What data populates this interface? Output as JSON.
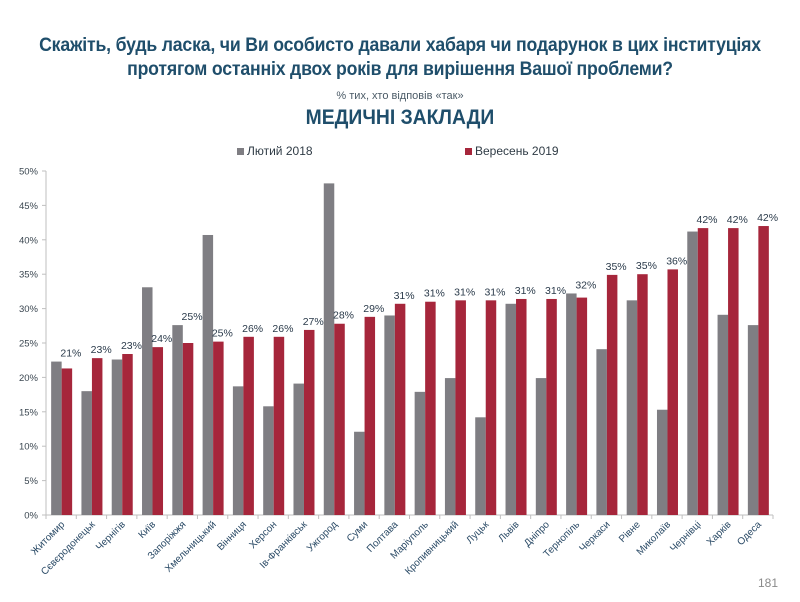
{
  "page": {
    "title_line1": "Скажіть, будь ласка, чи Ви особисто давали хабаря чи подарунок в цих інституціях",
    "title_line2": "протягом останніх двох років для вирішення Вашої проблеми?",
    "subtitle": "% тих, хто відповів «так»",
    "section_title": "МЕДИЧНІ ЗАКЛАДИ",
    "page_number": "181"
  },
  "chart_data": {
    "type": "bar",
    "title": "МЕДИЧНІ ЗАКЛАДИ",
    "subtitle": "% тих, хто відповів «так»",
    "xlabel": "",
    "ylabel": "",
    "ylim": [
      0,
      50
    ],
    "yticks": [
      0,
      5,
      10,
      15,
      20,
      25,
      30,
      35,
      40,
      45,
      50
    ],
    "ytick_labels": [
      "0%",
      "5%",
      "10%",
      "15%",
      "20%",
      "25%",
      "30%",
      "35%",
      "40%",
      "45%",
      "50%"
    ],
    "grid": false,
    "legend_position": "top-center",
    "categories": [
      "Житомир",
      "Сєвєродонецьк",
      "Чернігів",
      "Київ",
      "Запоріжжя",
      "Хмельницький",
      "Вінниця",
      "Херсон",
      "Ів-Франківськ",
      "Ужгород",
      "Суми",
      "Полтава",
      "Маріуполь",
      "Кропивницький",
      "Луцьк",
      "Львів",
      "Дніпро",
      "Тернопіль",
      "Черкаси",
      "Рівне",
      "Миколаїв",
      "Чернівці",
      "Харків",
      "Одеса"
    ],
    "series": [
      {
        "name": "Лютий 2018",
        "color": "#7f7e83",
        "values": [
          22.3,
          18.0,
          22.6,
          33.1,
          27.6,
          40.7,
          18.7,
          15.8,
          19.1,
          48.2,
          12.1,
          29.0,
          17.9,
          19.9,
          14.2,
          30.7,
          19.9,
          32.2,
          24.1,
          31.2,
          15.3,
          41.2,
          29.1,
          27.6
        ],
        "data_labels": null
      },
      {
        "name": "Вересень 2019",
        "color": "#a6263b",
        "values": [
          21.3,
          22.8,
          23.4,
          24.4,
          25.0,
          25.2,
          25.9,
          25.9,
          26.9,
          27.8,
          28.8,
          30.7,
          31.0,
          31.2,
          31.2,
          31.4,
          31.4,
          31.6,
          34.9,
          35.0,
          35.7,
          41.7,
          41.7,
          42.0
        ],
        "data_labels": [
          "21%",
          "23%",
          "23%",
          "24%",
          "25%",
          "25%",
          "26%",
          "26%",
          "27%",
          "28%",
          "29%",
          "31%",
          "31%",
          "31%",
          "31%",
          "31%",
          "31%",
          "32%",
          "35%",
          "35%",
          "36%",
          "42%",
          "42%",
          "42%"
        ]
      }
    ]
  }
}
